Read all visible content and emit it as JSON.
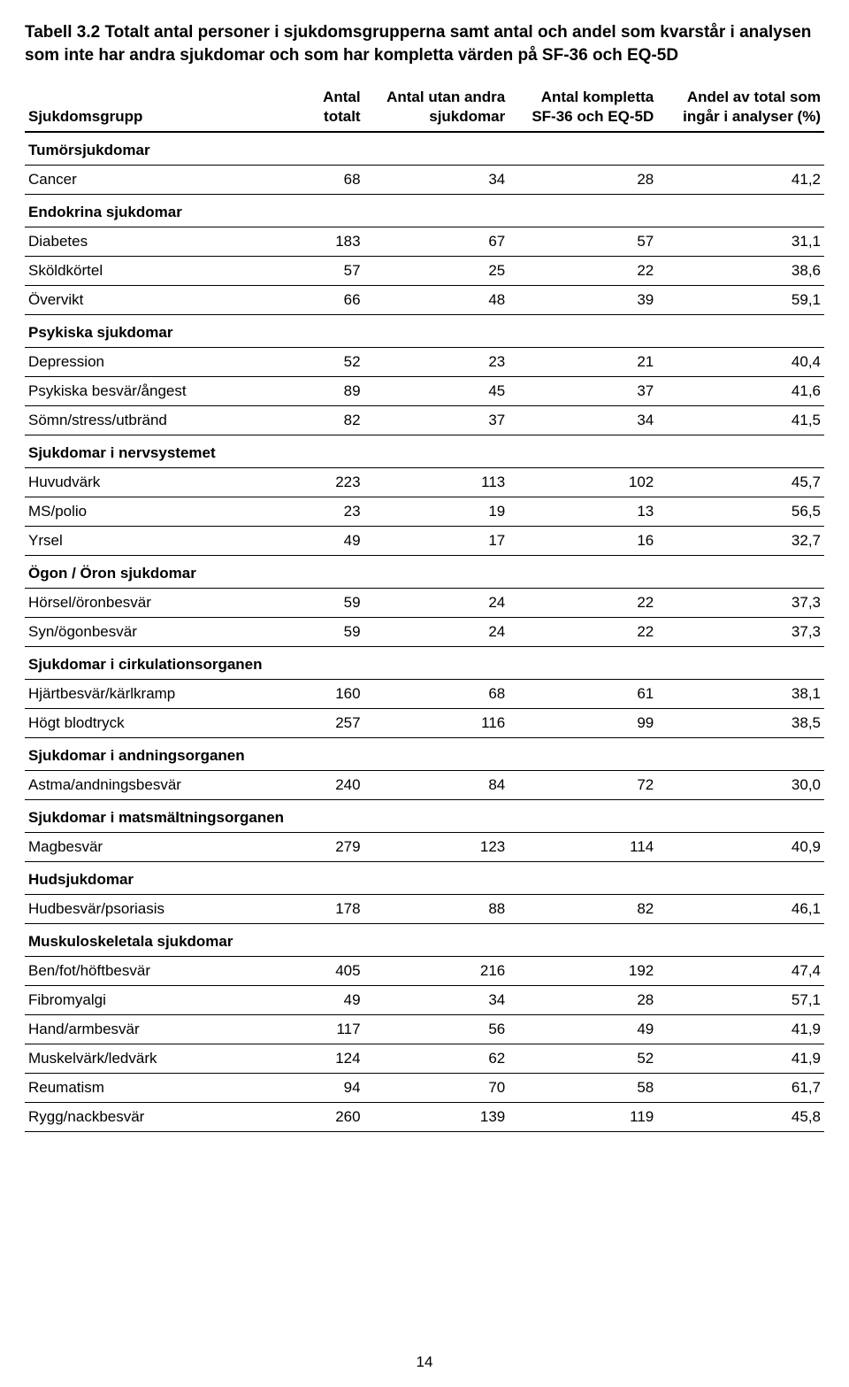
{
  "title": "Tabell 3.2 Totalt antal personer i sjukdomsgrupperna samt antal och andel som kvarstår i analysen som inte har andra sjukdomar och som har kompletta värden på SF-36 och EQ-5D",
  "columns": {
    "col0_line1": "Sjukdomsgrupp",
    "col1_line1": "Antal",
    "col1_line2": "totalt",
    "col2_line1": "Antal utan andra",
    "col2_line2": "sjukdomar",
    "col3_line1": "Antal kompletta",
    "col3_line2": "SF-36 och EQ-5D",
    "col4_line1": "Andel av total som",
    "col4_line2": "ingår i analyser (%)"
  },
  "groups": [
    {
      "name": "Tumörsjukdomar",
      "rows": [
        {
          "label": "Cancer",
          "v1": "68",
          "v2": "34",
          "v3": "28",
          "v4": "41,2"
        }
      ]
    },
    {
      "name": "Endokrina sjukdomar",
      "rows": [
        {
          "label": "Diabetes",
          "v1": "183",
          "v2": "67",
          "v3": "57",
          "v4": "31,1"
        },
        {
          "label": "Sköldkörtel",
          "v1": "57",
          "v2": "25",
          "v3": "22",
          "v4": "38,6"
        },
        {
          "label": "Övervikt",
          "v1": "66",
          "v2": "48",
          "v3": "39",
          "v4": "59,1"
        }
      ]
    },
    {
      "name": "Psykiska sjukdomar",
      "rows": [
        {
          "label": "Depression",
          "v1": "52",
          "v2": "23",
          "v3": "21",
          "v4": "40,4"
        },
        {
          "label": "Psykiska besvär/ångest",
          "v1": "89",
          "v2": "45",
          "v3": "37",
          "v4": "41,6"
        },
        {
          "label": "Sömn/stress/utbränd",
          "v1": "82",
          "v2": "37",
          "v3": "34",
          "v4": "41,5"
        }
      ]
    },
    {
      "name": "Sjukdomar i nervsystemet",
      "rows": [
        {
          "label": "Huvudvärk",
          "v1": "223",
          "v2": "113",
          "v3": "102",
          "v4": "45,7"
        },
        {
          "label": "MS/polio",
          "v1": "23",
          "v2": "19",
          "v3": "13",
          "v4": "56,5"
        },
        {
          "label": "Yrsel",
          "v1": "49",
          "v2": "17",
          "v3": "16",
          "v4": "32,7"
        }
      ]
    },
    {
      "name": "Ögon / Öron sjukdomar",
      "rows": [
        {
          "label": "Hörsel/öronbesvär",
          "v1": "59",
          "v2": "24",
          "v3": "22",
          "v4": "37,3"
        },
        {
          "label": "Syn/ögonbesvär",
          "v1": "59",
          "v2": "24",
          "v3": "22",
          "v4": "37,3"
        }
      ]
    },
    {
      "name": "Sjukdomar i cirkulationsorganen",
      "rows": [
        {
          "label": "Hjärtbesvär/kärlkramp",
          "v1": "160",
          "v2": "68",
          "v3": "61",
          "v4": "38,1"
        },
        {
          "label": "Högt blodtryck",
          "v1": "257",
          "v2": "116",
          "v3": "99",
          "v4": "38,5"
        }
      ]
    },
    {
      "name": "Sjukdomar i andningsorganen",
      "rows": [
        {
          "label": "Astma/andningsbesvär",
          "v1": "240",
          "v2": "84",
          "v3": "72",
          "v4": "30,0"
        }
      ]
    },
    {
      "name": "Sjukdomar i matsmältningsorganen",
      "rows": [
        {
          "label": "Magbesvär",
          "v1": "279",
          "v2": "123",
          "v3": "114",
          "v4": "40,9"
        }
      ]
    },
    {
      "name": "Hudsjukdomar",
      "rows": [
        {
          "label": "Hudbesvär/psoriasis",
          "v1": "178",
          "v2": "88",
          "v3": "82",
          "v4": "46,1"
        }
      ]
    },
    {
      "name": "Muskuloskeletala sjukdomar",
      "rows": [
        {
          "label": "Ben/fot/höftbesvär",
          "v1": "405",
          "v2": "216",
          "v3": "192",
          "v4": "47,4"
        },
        {
          "label": "Fibromyalgi",
          "v1": "49",
          "v2": "34",
          "v3": "28",
          "v4": "57,1"
        },
        {
          "label": "Hand/armbesvär",
          "v1": "117",
          "v2": "56",
          "v3": "49",
          "v4": "41,9"
        },
        {
          "label": "Muskelvärk/ledvärk",
          "v1": "124",
          "v2": "62",
          "v3": "52",
          "v4": "41,9"
        },
        {
          "label": "Reumatism",
          "v1": "94",
          "v2": "70",
          "v3": "58",
          "v4": "61,7"
        },
        {
          "label": "Rygg/nackbesvär",
          "v1": "260",
          "v2": "139",
          "v3": "119",
          "v4": "45,8"
        }
      ]
    }
  ],
  "page_number": "14"
}
